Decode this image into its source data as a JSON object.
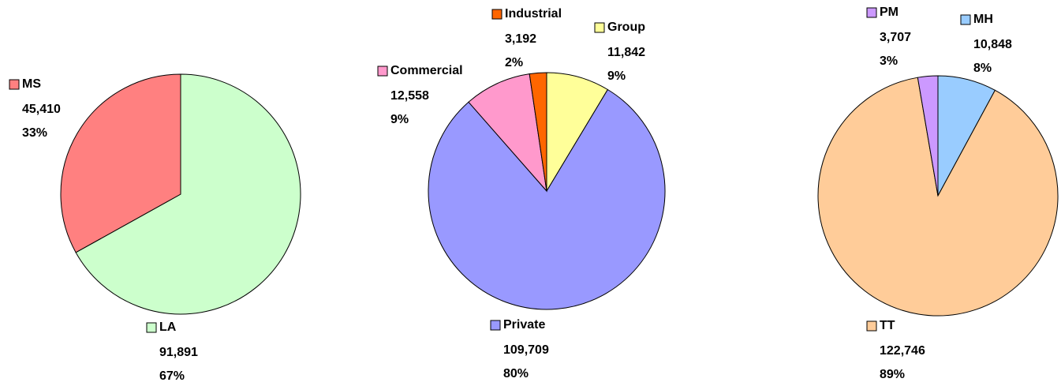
{
  "chart_data": [
    {
      "type": "pie",
      "categories": [
        "LA",
        "MS"
      ],
      "values": [
        91891,
        45410
      ],
      "value_labels": [
        "91,891",
        "45,410"
      ],
      "percents": [
        67,
        33
      ],
      "percent_labels": [
        "67%",
        "33%"
      ],
      "colors": [
        "#ccffcc",
        "#ff8080"
      ]
    },
    {
      "type": "pie",
      "categories": [
        "Group",
        "Private",
        "Commercial",
        "Industrial"
      ],
      "values": [
        11842,
        109709,
        12558,
        3192
      ],
      "value_labels": [
        "11,842",
        "109,709",
        "12,558",
        "3,192"
      ],
      "percents": [
        9,
        80,
        9,
        2
      ],
      "percent_labels": [
        "9%",
        "80%",
        "9%",
        "2%"
      ],
      "colors": [
        "#ffff99",
        "#9999ff",
        "#ff99cc",
        "#ff6600"
      ]
    },
    {
      "type": "pie",
      "categories": [
        "MH",
        "TT",
        "PM"
      ],
      "values": [
        10848,
        122746,
        3707
      ],
      "value_labels": [
        "10,848",
        "122,746",
        "3,707"
      ],
      "percents": [
        8,
        89,
        3
      ],
      "percent_labels": [
        "8%",
        "89%",
        "3%"
      ],
      "colors": [
        "#99ccff",
        "#ffcc99",
        "#cc99ff"
      ]
    }
  ]
}
